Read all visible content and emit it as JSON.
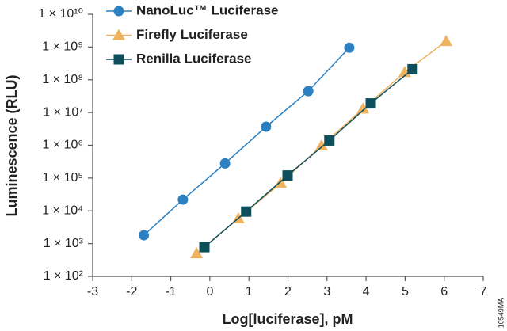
{
  "chart_data": {
    "type": "line",
    "x_label": "Log[luciferase], pM",
    "y_label": "Luminescence (RLU)",
    "code": "10549MA",
    "log_y": true,
    "xlim": [
      -3,
      7
    ],
    "xticks": [
      -3,
      -2,
      -1,
      0,
      1,
      2,
      3,
      4,
      5,
      6,
      7
    ],
    "ylim": [
      100,
      10000000000
    ],
    "yticks": [
      {
        "value": 100,
        "label": "1 × 10²"
      },
      {
        "value": 1000,
        "label": "1 × 10³"
      },
      {
        "value": 10000,
        "label": "1 × 10⁴"
      },
      {
        "value": 100000,
        "label": "1 × 10⁵"
      },
      {
        "value": 1000000,
        "label": "1 × 10⁶"
      },
      {
        "value": 10000000,
        "label": "1 × 10⁷"
      },
      {
        "value": 100000000,
        "label": "1 × 10⁸"
      },
      {
        "value": 1000000000,
        "label": "1 × 10⁹"
      },
      {
        "value": 10000000000,
        "label": "1 × 10¹⁰"
      }
    ],
    "legend": "upper left",
    "series": [
      {
        "name": "NanoLuc™ Luciferase",
        "color": "#2a80c0",
        "marker": "circle",
        "x": [
          -1.69,
          -0.69,
          0.39,
          1.44,
          2.52,
          3.57
        ],
        "values": [
          1800,
          22000,
          280000,
          3700000,
          45000000,
          950000000
        ]
      },
      {
        "name": "Firefly Luciferase",
        "color": "#efb25e",
        "marker": "triangle",
        "x": [
          -0.34,
          0.73,
          1.81,
          2.86,
          3.92,
          4.99,
          6.05
        ],
        "values": [
          500,
          5800,
          70000,
          970000,
          13000000,
          170000000,
          1500000000
        ]
      },
      {
        "name": "Renilla Luciferase",
        "color": "#0f4f5c",
        "marker": "square",
        "x": [
          -0.14,
          0.93,
          1.99,
          3.06,
          4.12,
          5.19
        ],
        "values": [
          780,
          9500,
          120000,
          1400000,
          19000000,
          210000000
        ]
      }
    ]
  }
}
